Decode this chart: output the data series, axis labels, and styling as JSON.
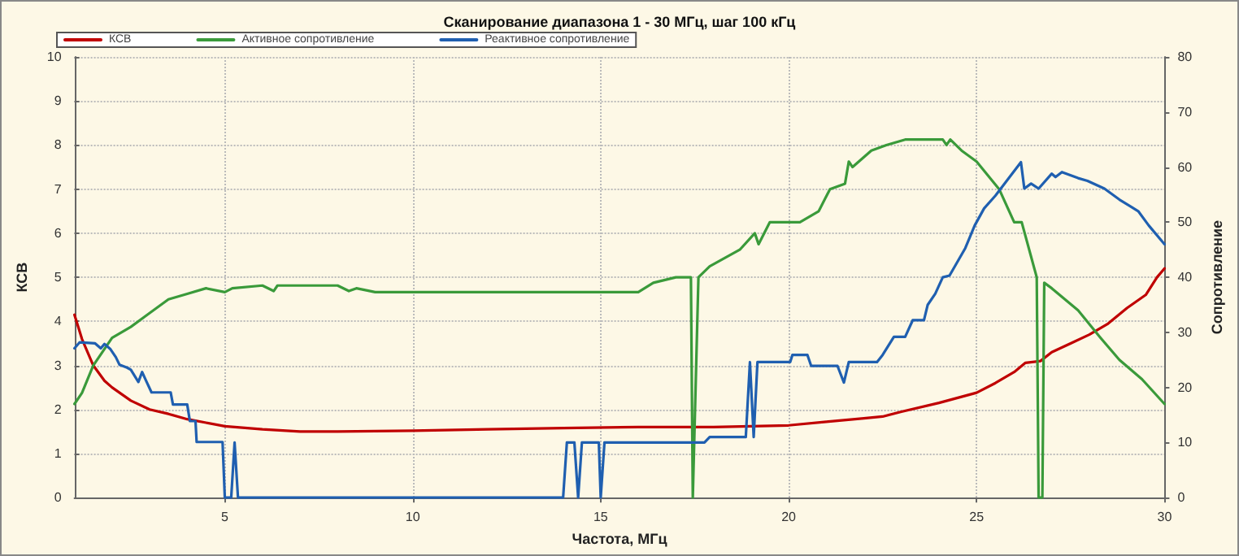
{
  "chart_data": {
    "type": "line",
    "title": "Сканирование диапазона 1 - 30 МГц, шаг 100 кГц",
    "xlabel": "Частота, МГц",
    "ylabel": "КСВ",
    "y2label": "Сопротивление",
    "xlim": [
      1,
      30
    ],
    "xticks": [
      5,
      10,
      15,
      20,
      25,
      30
    ],
    "ylim": [
      0,
      10
    ],
    "yticks": [
      0,
      1,
      2,
      3,
      4,
      5,
      6,
      7,
      8,
      9,
      10
    ],
    "y2lim": [
      0,
      80
    ],
    "y2ticks": [
      0,
      10,
      20,
      30,
      40,
      50,
      60,
      70,
      80
    ],
    "grid": true,
    "legend": "top left",
    "marker": "none",
    "line_style": "solid",
    "series": [
      {
        "name": "КСВ",
        "color": "#c00000",
        "x": [
          1,
          1.2,
          1.5,
          1.8,
          2,
          2.5,
          3,
          3.5,
          4,
          4.5,
          5,
          6,
          7,
          8,
          9,
          10,
          12,
          14,
          16,
          18,
          19,
          20,
          21,
          22,
          22.5,
          23,
          24,
          25,
          25.5,
          26,
          26.3,
          26.7,
          27,
          27.5,
          28,
          28.5,
          29,
          29.5,
          29.8,
          30
        ],
        "values": [
          4.15,
          3.6,
          3.0,
          2.65,
          2.5,
          2.2,
          2.0,
          1.9,
          1.78,
          1.7,
          1.62,
          1.55,
          1.5,
          1.5,
          1.51,
          1.52,
          1.55,
          1.58,
          1.6,
          1.6,
          1.62,
          1.64,
          1.72,
          1.8,
          1.84,
          1.95,
          2.15,
          2.38,
          2.6,
          2.85,
          3.06,
          3.1,
          3.3,
          3.5,
          3.7,
          3.95,
          4.3,
          4.6,
          5.0,
          5.2
        ]
      },
      {
        "name": "Активное сопротивление",
        "color": "#3a9a3a",
        "axis": "y2",
        "x": [
          1,
          1.2,
          1.5,
          2,
          2.5,
          2.9,
          3.5,
          4,
          4.5,
          5,
          5.2,
          6,
          6.3,
          6.4,
          6.5,
          7,
          8,
          8.3,
          8.5,
          9,
          12,
          16,
          16.4,
          17,
          17.4,
          17.45,
          17.6,
          17.9,
          18.7,
          19.1,
          19.2,
          19.5,
          20.3,
          20.8,
          21.1,
          21.5,
          21.6,
          21.7,
          22.2,
          22.6,
          23.1,
          24.1,
          24.2,
          24.3,
          24.6,
          25.0,
          25.6,
          26.0,
          26.2,
          26.6,
          26.65,
          26.75,
          26.8,
          27.0,
          27.7,
          28.3,
          28.8,
          29.4,
          30
        ],
        "values": [
          17,
          19,
          24,
          29,
          31,
          33,
          36,
          37,
          38,
          37.3,
          38,
          38.5,
          37.5,
          38.5,
          38.5,
          38.5,
          38.5,
          37.5,
          38,
          37.3,
          37.3,
          37.3,
          39,
          40,
          40,
          0,
          40,
          42,
          45,
          48,
          46,
          50,
          50,
          52,
          56,
          57,
          61,
          60,
          63,
          64,
          65,
          65,
          64,
          65,
          63,
          61,
          56,
          50,
          50,
          40,
          0,
          0,
          39,
          38,
          34,
          29,
          25,
          21.5,
          17
        ]
      },
      {
        "name": "Реактивное сопротивление",
        "color": "#1f5fb0",
        "axis": "y2",
        "x": [
          1,
          1.14,
          1.55,
          1.7,
          1.8,
          1.95,
          2.1,
          2.2,
          2.4,
          2.5,
          2.7,
          2.8,
          2.9,
          3.05,
          3.56,
          3.62,
          4.0,
          4.07,
          4.22,
          4.25,
          4.94,
          5.0,
          5.17,
          5.26,
          5.35,
          14.0,
          14.1,
          14.3,
          14.4,
          14.5,
          14.95,
          15.0,
          15.1,
          17.76,
          17.9,
          18.86,
          18.97,
          19.07,
          19.17,
          20.04,
          20.1,
          20.5,
          20.6,
          21.3,
          21.47,
          21.6,
          22.35,
          22.5,
          22.8,
          23.1,
          23.3,
          23.6,
          23.7,
          23.9,
          24.1,
          24.28,
          24.7,
          24.95,
          25.2,
          25.5,
          26.18,
          26.27,
          26.45,
          26.65,
          27.0,
          27.1,
          27.27,
          27.7,
          27.95,
          28.4,
          28.8,
          29.3,
          29.58,
          30
        ],
        "values": [
          27.1,
          28.2,
          28,
          27.1,
          27.9,
          27,
          25.5,
          24.1,
          23.6,
          23.2,
          21,
          22.8,
          21.3,
          19.1,
          19.1,
          16.9,
          16.9,
          13.9,
          13.9,
          10.1,
          10.1,
          0,
          0,
          10,
          0,
          0,
          10,
          10,
          0,
          10,
          10,
          0,
          10,
          10,
          11,
          11,
          24.6,
          11,
          24.6,
          24.6,
          25.9,
          25.9,
          23.9,
          23.9,
          20.9,
          24.6,
          24.6,
          25.9,
          29.2,
          29.2,
          32.2,
          32.2,
          35,
          37,
          40,
          40.3,
          45.3,
          49.4,
          52.5,
          54.8,
          60.9,
          56.1,
          57,
          56.1,
          58.8,
          58.2,
          59.1,
          58,
          57.5,
          56.1,
          54.1,
          52,
          49.4,
          46
        ]
      }
    ]
  }
}
